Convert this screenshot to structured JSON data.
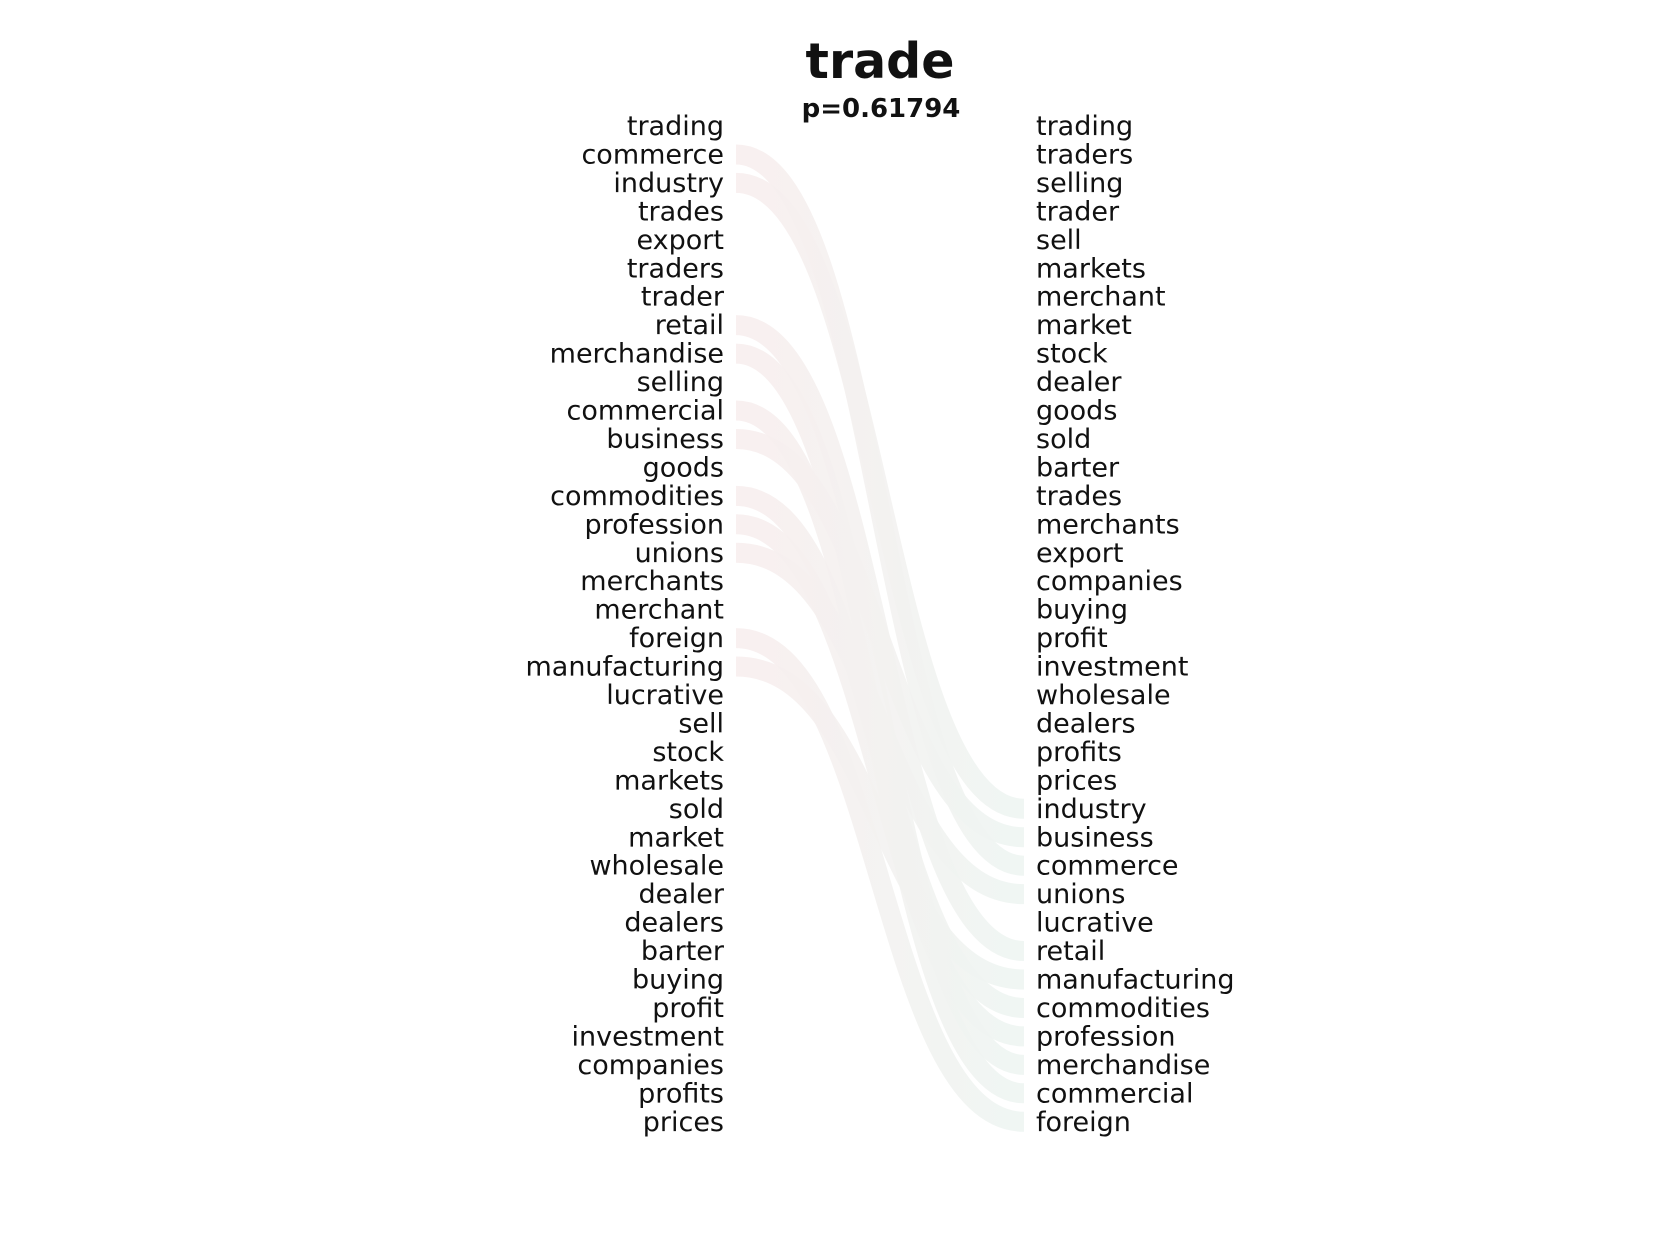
{
  "chart_data": {
    "type": "bump",
    "title": "trade",
    "subtitle": "p=0.61794",
    "left_ranking": [
      "trading",
      "commerce",
      "industry",
      "trades",
      "export",
      "traders",
      "trader",
      "retail",
      "merchandise",
      "selling",
      "commercial",
      "business",
      "goods",
      "commodities",
      "profession",
      "unions",
      "merchants",
      "merchant",
      "foreign",
      "manufacturing",
      "lucrative",
      "sell",
      "stock",
      "markets",
      "sold",
      "market",
      "wholesale",
      "dealer",
      "dealers",
      "barter",
      "buying",
      "profit",
      "investment",
      "companies",
      "profits",
      "prices"
    ],
    "right_ranking": [
      "trading",
      "traders",
      "selling",
      "trader",
      "sell",
      "markets",
      "merchant",
      "market",
      "stock",
      "dealer",
      "goods",
      "sold",
      "barter",
      "trades",
      "merchants",
      "export",
      "companies",
      "buying",
      "profit",
      "investment",
      "wholesale",
      "dealers",
      "profits",
      "prices",
      "industry",
      "business",
      "commerce",
      "unions",
      "lucrative",
      "retail",
      "manufacturing",
      "commodities",
      "profession",
      "merchandise",
      "commercial",
      "foreign"
    ],
    "highlighted_links": [
      "commerce",
      "industry",
      "retail",
      "merchandise",
      "commercial",
      "business",
      "unions",
      "manufacturing",
      "commodities",
      "profession",
      "foreign"
    ],
    "colors": {
      "text": "#111111",
      "link_start": "#f8eeee",
      "link_end": "#eef5f2",
      "background": "#ffffff"
    }
  }
}
